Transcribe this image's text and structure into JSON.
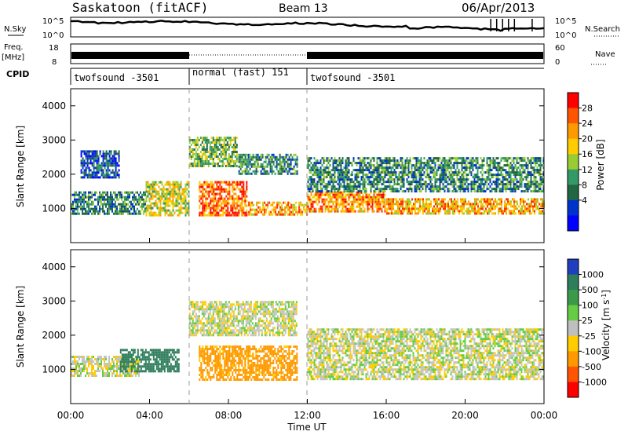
{
  "header": {
    "station": "Saskatoon (fitACF)",
    "beam": "Beam 13",
    "date": "06/Apr/2013"
  },
  "status_panels": {
    "nsky_label": "N.Sky",
    "nsky_ticks": [
      "10^5",
      "10^0"
    ],
    "nsearch_label": "N.Search",
    "nsearch_ticks": [
      "10^5",
      "10^0"
    ],
    "freq_label_1": "Freq.",
    "freq_label_2": "[MHz]",
    "freq_ticks": [
      "18",
      "8"
    ],
    "nave_label": "Nave",
    "nave_ticks": [
      "60",
      "0"
    ],
    "cpid_label": "CPID",
    "cpid_segments": [
      {
        "label": "twofsound -3501",
        "start_hour": 0,
        "end_hour": 6
      },
      {
        "label": "normal (fast) 151",
        "start_hour": 6,
        "end_hour": 12
      },
      {
        "label": "twofsound -3501",
        "start_hour": 12,
        "end_hour": 24
      }
    ]
  },
  "power_panel": {
    "ylabel": "Slant Range [km]",
    "colorbar_label": "Power [dB]",
    "colorbar_ticks": [
      "28",
      "24",
      "20",
      "16",
      "12",
      "8",
      "4"
    ],
    "colorbar_colors": [
      "#ff0000",
      "#ff5500",
      "#ff9900",
      "#ffcc00",
      "#99cc33",
      "#339966",
      "#226644",
      "#0033cc",
      "#0000ff"
    ]
  },
  "velocity_panel": {
    "ylabel": "Slant Range [km]",
    "colorbar_label": "Velocity [m s^-1]",
    "colorbar_ticks": [
      "1000",
      "500",
      "100",
      "25",
      "-25",
      "-100",
      "-500",
      "-1000"
    ],
    "colorbar_colors": [
      "#1f3fbf",
      "#2e7d5b",
      "#3a9a4a",
      "#66cc44",
      "#bfbfbf",
      "#ffcc00",
      "#ff9900",
      "#ff5500",
      "#ff0000"
    ]
  },
  "xaxis": {
    "label": "Time UT",
    "ticks": [
      "00:00",
      "04:00",
      "08:00",
      "12:00",
      "16:00",
      "20:00",
      "00:00"
    ]
  },
  "chart_data": [
    {
      "type": "heatmap",
      "title": "Saskatoon (fitACF) Beam 13 06/Apr/2013",
      "xlabel": "Time UT",
      "ylabel": "Slant Range [km]",
      "colorbar": "Power [dB]",
      "xlim_hours": [
        0,
        24
      ],
      "ylim_km": [
        0,
        4500
      ],
      "yticks": [
        1000,
        2000,
        3000,
        4000
      ],
      "clim_db": [
        0,
        30
      ],
      "regions": [
        {
          "t0": 0.0,
          "t1": 3.8,
          "r0": 800,
          "r1": 1500,
          "db": 12
        },
        {
          "t0": 0.5,
          "t1": 2.5,
          "r0": 1900,
          "r1": 2700,
          "db": 8
        },
        {
          "t0": 3.8,
          "t1": 6.0,
          "r0": 800,
          "r1": 1800,
          "db": 20
        },
        {
          "t0": 6.0,
          "t1": 8.5,
          "r0": 2200,
          "r1": 3100,
          "db": 16
        },
        {
          "t0": 6.5,
          "t1": 9.0,
          "r0": 800,
          "r1": 1800,
          "db": 28
        },
        {
          "t0": 8.5,
          "t1": 11.5,
          "r0": 2000,
          "r1": 2600,
          "db": 12
        },
        {
          "t0": 9.0,
          "t1": 12.0,
          "r0": 800,
          "r1": 1200,
          "db": 24
        },
        {
          "t0": 12.0,
          "t1": 16.0,
          "r0": 900,
          "r1": 1500,
          "db": 26
        },
        {
          "t0": 12.0,
          "t1": 24.0,
          "r0": 1500,
          "r1": 2500,
          "db": 12
        },
        {
          "t0": 16.0,
          "t1": 24.0,
          "r0": 800,
          "r1": 1300,
          "db": 24
        }
      ]
    },
    {
      "type": "heatmap",
      "title": "Saskatoon (fitACF) Beam 13 06/Apr/2013",
      "xlabel": "Time UT",
      "ylabel": "Slant Range [km]",
      "colorbar": "Velocity [m s^-1]",
      "xlim_hours": [
        0,
        24
      ],
      "ylim_km": [
        0,
        4500
      ],
      "yticks": [
        1000,
        2000,
        3000,
        4000
      ],
      "clim_ms": [
        -1000,
        1000
      ],
      "regions": [
        {
          "t0": 0.0,
          "t1": 3.5,
          "r0": 800,
          "r1": 1400,
          "v": 0
        },
        {
          "t0": 2.5,
          "t1": 5.5,
          "r0": 900,
          "r1": 1600,
          "v": 400
        },
        {
          "t0": 6.0,
          "t1": 11.5,
          "r0": 2000,
          "r1": 3000,
          "v": 0
        },
        {
          "t0": 6.5,
          "t1": 11.5,
          "r0": 700,
          "r1": 1700,
          "v": -150
        },
        {
          "t0": 12.0,
          "t1": 24.0,
          "r0": 700,
          "r1": 2200,
          "v": 0
        }
      ]
    }
  ]
}
